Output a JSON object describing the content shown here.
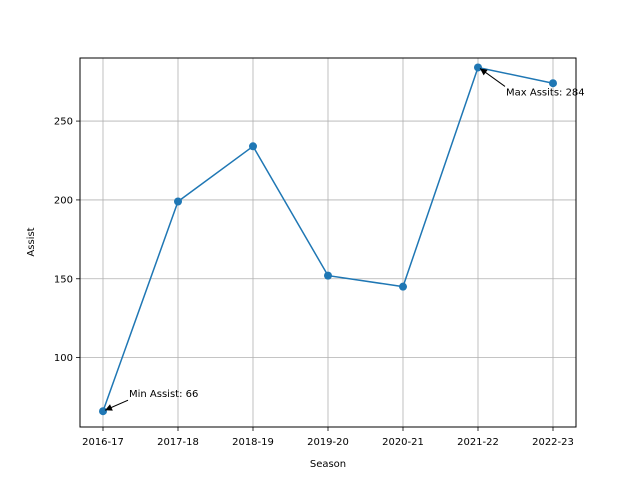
{
  "chart_data": {
    "type": "line",
    "title": "",
    "xlabel": "Season",
    "ylabel": "Assist",
    "categories": [
      "2016-17",
      "2017-18",
      "2018-19",
      "2019-20",
      "2020-21",
      "2021-22",
      "2022-23"
    ],
    "series": [
      {
        "values": [
          66,
          199,
          234,
          152,
          145,
          284,
          274
        ],
        "color": "#1f77b4",
        "marker": "circle"
      }
    ],
    "yticks": [
      100,
      150,
      200,
      250
    ],
    "ylim": [
      56,
      290
    ],
    "grid": true,
    "annotations": [
      {
        "text": "Min Assist: 66",
        "target_category": "2016-17",
        "target_value": 66
      },
      {
        "text": "Max Assits: 284",
        "target_category": "2021-22",
        "target_value": 284
      }
    ]
  }
}
